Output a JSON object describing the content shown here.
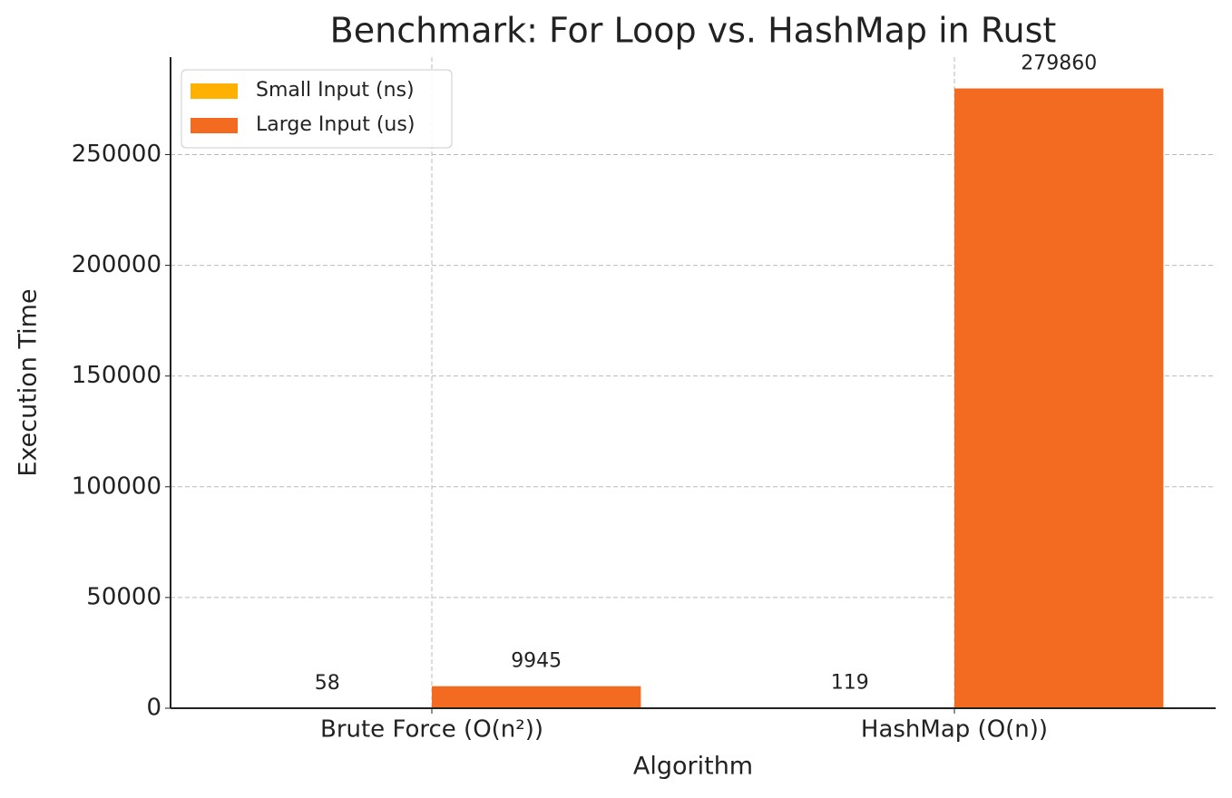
{
  "chart_data": {
    "type": "bar",
    "title": "Benchmark: For Loop vs. HashMap in Rust",
    "x_label": "Algorithm",
    "y_label": "Execution Time",
    "categories": [
      "Brute Force (O(n²))",
      "HashMap (O(n))"
    ],
    "series": [
      {
        "name": "Small Input (ns)",
        "color": "#ffb000",
        "values": [
          58,
          119
        ]
      },
      {
        "name": "Large Input (us)",
        "color": "#f26b21",
        "values": [
          9945,
          279860
        ]
      }
    ],
    "ylim": [
      0,
      294000
    ],
    "yticks": [
      0,
      50000,
      100000,
      150000,
      200000,
      250000
    ],
    "grid": true,
    "legend": "upper-left"
  }
}
